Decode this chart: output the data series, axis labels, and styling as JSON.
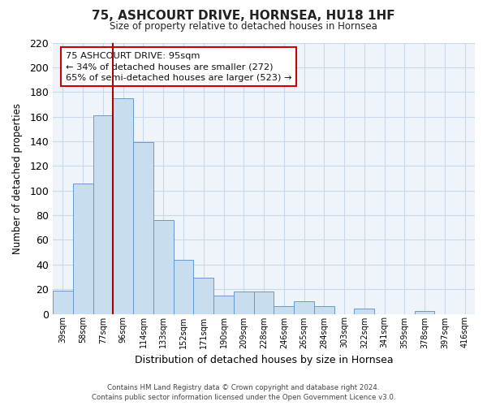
{
  "title": "75, ASHCOURT DRIVE, HORNSEA, HU18 1HF",
  "subtitle": "Size of property relative to detached houses in Hornsea",
  "xlabel": "Distribution of detached houses by size in Hornsea",
  "ylabel": "Number of detached properties",
  "categories": [
    "39sqm",
    "58sqm",
    "77sqm",
    "96sqm",
    "114sqm",
    "133sqm",
    "152sqm",
    "171sqm",
    "190sqm",
    "209sqm",
    "228sqm",
    "246sqm",
    "265sqm",
    "284sqm",
    "303sqm",
    "322sqm",
    "341sqm",
    "359sqm",
    "378sqm",
    "397sqm",
    "416sqm"
  ],
  "values": [
    19,
    106,
    161,
    175,
    139,
    76,
    44,
    29,
    15,
    18,
    18,
    6,
    10,
    6,
    0,
    4,
    0,
    0,
    2,
    0,
    0
  ],
  "bar_color": "#c8ddf0",
  "bar_edge_color": "#6699cc",
  "vline_index": 2.5,
  "vline_color": "#aa0000",
  "ylim": [
    0,
    220
  ],
  "yticks": [
    0,
    20,
    40,
    60,
    80,
    100,
    120,
    140,
    160,
    180,
    200,
    220
  ],
  "annotation_title": "75 ASHCOURT DRIVE: 95sqm",
  "annotation_line1": "← 34% of detached houses are smaller (272)",
  "annotation_line2": "65% of semi-detached houses are larger (523) →",
  "annotation_box_color": "#ffffff",
  "annotation_box_edge": "#cc0000",
  "footer_line1": "Contains HM Land Registry data © Crown copyright and database right 2024.",
  "footer_line2": "Contains public sector information licensed under the Open Government Licence v3.0.",
  "background_color": "#ffffff",
  "grid_color": "#c8d8e8",
  "plot_bg_color": "#eef4fa"
}
